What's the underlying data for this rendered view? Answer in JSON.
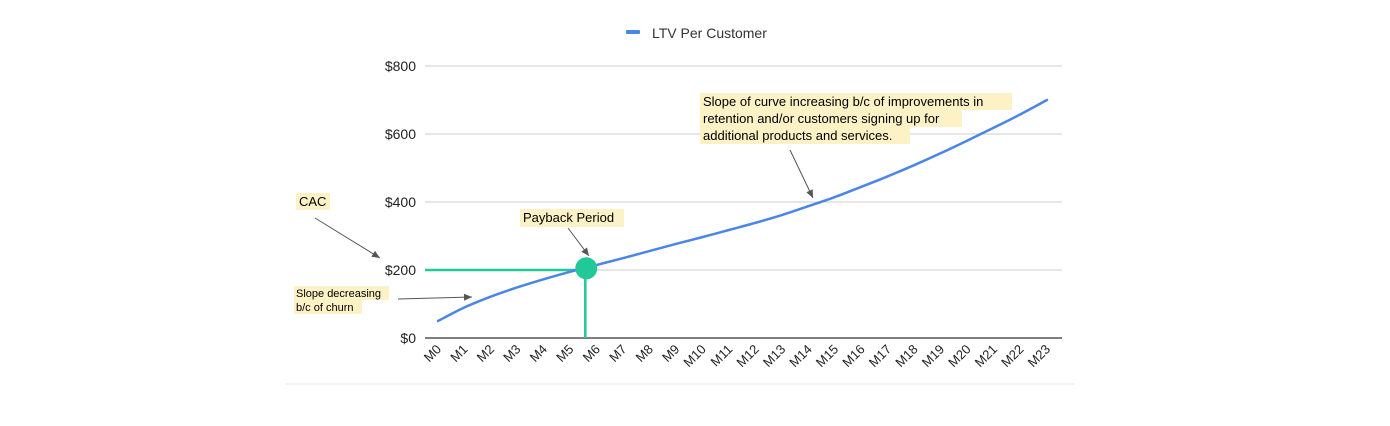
{
  "chart_data": {
    "type": "line",
    "categories": [
      "M0",
      "M1",
      "M2",
      "M3",
      "M4",
      "M5",
      "M6",
      "M7",
      "M8",
      "M9",
      "M10",
      "M11",
      "M12",
      "M13",
      "M14",
      "M15",
      "M16",
      "M17",
      "M18",
      "M19",
      "M20",
      "M21",
      "M22",
      "M23"
    ],
    "series": [
      {
        "name": "LTV Per Customer",
        "color": "#4a86e8",
        "values": [
          50,
          90,
          122,
          149,
          173,
          195,
          215,
          235,
          256,
          277,
          297,
          318,
          339,
          362,
          388,
          415,
          445,
          476,
          509,
          544,
          581,
          619,
          658,
          700
        ]
      }
    ],
    "yticks": [
      "$0",
      "$200",
      "$400",
      "$600",
      "$800"
    ],
    "ytick_values": [
      0,
      200,
      400,
      600,
      800
    ],
    "ylim": [
      0,
      800
    ],
    "grid": "horizontal",
    "legend_position": "top-center",
    "cac": {
      "value": 200,
      "color": "#20c997"
    },
    "payback": {
      "category_index": 5.6,
      "value": 205,
      "color": "#20c997"
    },
    "annotations": {
      "cac": "CAC",
      "payback": "Payback Period",
      "slope_increasing": [
        "Slope of curve increasing b/c of improvements in",
        "retention and/or customers signing up for",
        "additional products and services."
      ],
      "slope_decreasing": [
        "Slope decreasing",
        "b/c of churn"
      ]
    },
    "annotation_bg": "#fdf2c6",
    "title": "",
    "xlabel": "",
    "ylabel": ""
  }
}
